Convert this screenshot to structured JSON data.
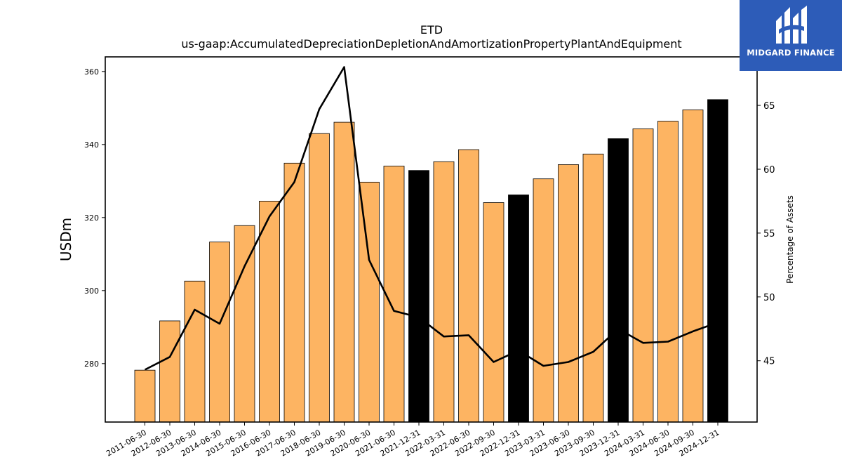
{
  "logo": {
    "text": "MIDGARD FINANCE"
  },
  "colors": {
    "historical_bar": "#fdb462",
    "year_end_bar": "#000000",
    "line": "#000000",
    "logo_bg": "#2d5cb8"
  },
  "chart_data": {
    "type": "bar",
    "title": "ETD",
    "subtitle": "us-gaap:AccumulatedDepreciationDepletionAndAmortizationPropertyPlantAndEquipment",
    "ylabel": "USDm",
    "y2label": "Percentage of Assets",
    "ylim": [
      264,
      364
    ],
    "y2lim": [
      40.2,
      68.8
    ],
    "yticks": [
      280,
      300,
      320,
      340,
      360
    ],
    "y2ticks": [
      45,
      50,
      55,
      60,
      65
    ],
    "categories": [
      "2011-06-30",
      "2012-06-30",
      "2013-06-30",
      "2014-06-30",
      "2015-06-30",
      "2016-06-30",
      "2017-06-30",
      "2018-06-30",
      "2019-06-30",
      "2020-06-30",
      "2021-06-30",
      "2021-12-31",
      "2022-03-31",
      "2022-06-30",
      "2022-09-30",
      "2022-12-31",
      "2023-03-31",
      "2023-06-30",
      "2023-09-30",
      "2023-12-31",
      "2024-03-31",
      "2024-06-30",
      "2024-09-30",
      "2024-12-31"
    ],
    "series": [
      {
        "type": "bar",
        "axis": "left",
        "values": [
          278.2,
          291.7,
          302.6,
          313.3,
          317.8,
          324.5,
          334.9,
          343.0,
          346.1,
          329.7,
          334.1,
          332.9,
          335.3,
          338.6,
          324.1,
          326.2,
          330.6,
          334.5,
          337.4,
          341.6,
          344.3,
          346.4,
          349.5,
          352.3
        ],
        "highlight": [
          false,
          false,
          false,
          false,
          false,
          false,
          false,
          false,
          false,
          false,
          false,
          true,
          false,
          false,
          false,
          true,
          false,
          false,
          false,
          true,
          false,
          false,
          false,
          true
        ]
      },
      {
        "type": "line",
        "axis": "right",
        "values": [
          44.3,
          45.3,
          49.0,
          47.9,
          52.4,
          56.3,
          59.0,
          64.7,
          68.0,
          52.9,
          48.9,
          48.4,
          46.9,
          47.0,
          44.9,
          45.8,
          44.6,
          44.9,
          45.7,
          47.5,
          46.4,
          46.5,
          47.3,
          48.0
        ]
      }
    ]
  }
}
